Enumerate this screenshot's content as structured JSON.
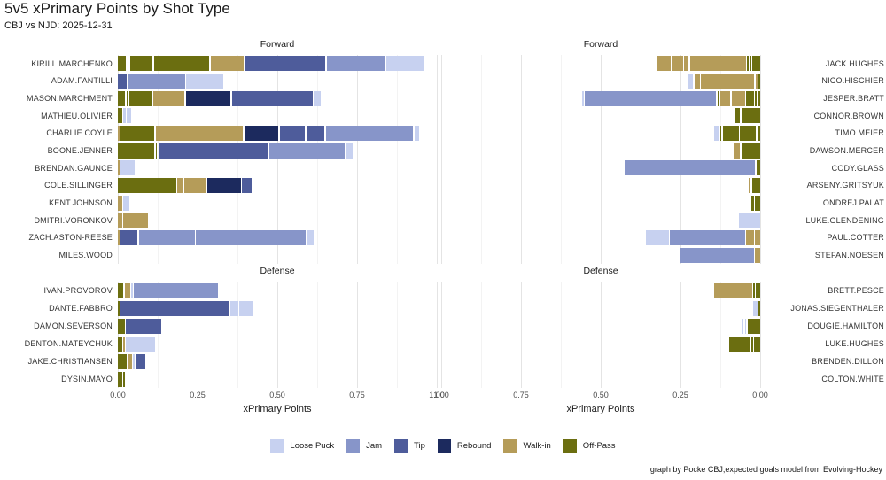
{
  "chart_data": {
    "type": "bar",
    "orientation": "horizontal-stacked",
    "title": "5v5 xPrimary Points by Shot Type",
    "subtitle": "CBJ vs NJD: 2025-12-31",
    "caption": "graph by Pocke CBJ,expected goals model from Evolving-Hockey",
    "xlabel": "xPrimary Points",
    "xlim": [
      0,
      1
    ],
    "x_tick_labels": [
      "0.00",
      "0.25",
      "0.50",
      "0.75",
      "1.00"
    ],
    "grid": "on",
    "legend_position": "bottom",
    "legend": [
      {
        "label": "Loose Puck",
        "color": "#c7d1f0"
      },
      {
        "label": "Jam",
        "color": "#8795c9"
      },
      {
        "label": "Tip",
        "color": "#4e5c9b"
      },
      {
        "label": "Rebound",
        "color": "#1c2a5e"
      },
      {
        "label": "Walk-in",
        "color": "#b59c59"
      },
      {
        "label": "Off-Pass",
        "color": "#6b6e10"
      }
    ],
    "colors": {
      "Loose Puck": "#c7d1f0",
      "Jam": "#8795c9",
      "Tip": "#4e5c9b",
      "Rebound": "#1c2a5e",
      "Walk-in": "#b59c59",
      "Off-Pass": "#6b6e10"
    },
    "panels": [
      {
        "id": "fl",
        "group": "Forward",
        "side": "left",
        "rows": [
          {
            "player": "KIRILL.MARCHENKO",
            "segments": [
              [
                "Off-Pass",
                0.03
              ],
              [
                "Off-Pass",
                0.008
              ],
              [
                "Off-Pass",
                0.075
              ],
              [
                "Off-Pass",
                0.178
              ],
              [
                "Walk-in",
                0.107
              ],
              [
                "Tip",
                0.256
              ],
              [
                "Jam",
                0.187
              ],
              [
                "Loose Puck",
                0.123
              ]
            ]
          },
          {
            "player": "ADAM.FANTILLI",
            "segments": [
              [
                "Tip",
                0.031
              ],
              [
                "Jam",
                0.183
              ],
              [
                "Loose Puck",
                0.12
              ]
            ]
          },
          {
            "player": "MASON.MARCHMENT",
            "segments": [
              [
                "Off-Pass",
                0.027
              ],
              [
                "Off-Pass",
                0.007
              ],
              [
                "Off-Pass",
                0.075
              ],
              [
                "Walk-in",
                0.103
              ],
              [
                "Rebound",
                0.144
              ],
              [
                "Tip",
                0.257
              ],
              [
                "Loose Puck",
                0.026
              ]
            ]
          },
          {
            "player": "MATHIEU.OLIVIER",
            "segments": [
              [
                "Off-Pass",
                0.008
              ],
              [
                "Off-Pass",
                0.008
              ],
              [
                "Loose Puck",
                0.011
              ],
              [
                "Loose Puck",
                0.019
              ]
            ]
          },
          {
            "player": "CHARLIE.COYLE",
            "segments": [
              [
                "Walk-in",
                0.004
              ],
              [
                "Off-Pass",
                0.11
              ],
              [
                "Walk-in",
                0.278
              ],
              [
                "Rebound",
                0.111
              ],
              [
                "Tip",
                0.083
              ],
              [
                "Tip",
                0.062
              ],
              [
                "Jam",
                0.278
              ],
              [
                "Loose Puck",
                0.019
              ]
            ]
          },
          {
            "player": "BOONE.JENNER",
            "segments": [
              [
                "Off-Pass",
                0.119
              ],
              [
                "Off-Pass",
                0.008
              ],
              [
                "Tip",
                0.347
              ],
              [
                "Jam",
                0.241
              ],
              [
                "Loose Puck",
                0.025
              ]
            ]
          },
          {
            "player": "BRENDAN.GAUNCE",
            "segments": [
              [
                "Walk-in",
                0.006
              ],
              [
                "Loose Puck",
                0.048
              ]
            ]
          },
          {
            "player": "COLE.SILLINGER",
            "segments": [
              [
                "Off-Pass",
                0.009
              ],
              [
                "Off-Pass",
                0.178
              ],
              [
                "Walk-in",
                0.021
              ],
              [
                "Walk-in",
                0.074
              ],
              [
                "Rebound",
                0.108
              ],
              [
                "Tip",
                0.033
              ]
            ]
          },
          {
            "player": "KENT.JOHNSON",
            "segments": [
              [
                "Walk-in",
                0.018
              ],
              [
                "Loose Puck",
                0.022
              ]
            ]
          },
          {
            "player": "DMITRI.VORONKOV",
            "segments": [
              [
                "Walk-in",
                0.018
              ],
              [
                "Walk-in",
                0.081
              ]
            ]
          },
          {
            "player": "ZACH.ASTON-REESE",
            "segments": [
              [
                "Walk-in",
                0.007
              ],
              [
                "Tip",
                0.057
              ],
              [
                "Jam",
                0.179
              ],
              [
                "Jam",
                0.348
              ],
              [
                "Loose Puck",
                0.026
              ]
            ]
          },
          {
            "player": "MILES.WOOD",
            "segments": []
          }
        ]
      },
      {
        "id": "fr",
        "group": "Forward",
        "side": "right",
        "rows": [
          {
            "player": "JACK.HUGHES",
            "segments": [
              [
                "Off-Pass",
                0.006
              ],
              [
                "Off-Pass",
                0.02
              ],
              [
                "Off-Pass",
                0.008
              ],
              [
                "Off-Pass",
                0.008
              ],
              [
                "Walk-in",
                0.178
              ],
              [
                "Walk-in",
                0.019
              ],
              [
                "Walk-in",
                0.037
              ],
              [
                "Walk-in",
                0.048
              ]
            ]
          },
          {
            "player": "NICO.HISCHIER",
            "segments": [
              [
                "Off-Pass",
                0.009
              ],
              [
                "Walk-in",
                0.01
              ],
              [
                "Walk-in",
                0.171
              ],
              [
                "Walk-in",
                0.021
              ],
              [
                "Loose Puck",
                0.02
              ]
            ]
          },
          {
            "player": "JESPER.BRATT",
            "segments": [
              [
                "Off-Pass",
                0.011
              ],
              [
                "Off-Pass",
                0.009
              ],
              [
                "Off-Pass",
                0.028
              ],
              [
                "Walk-in",
                0.046
              ],
              [
                "Walk-in",
                0.034
              ],
              [
                "Off-Pass",
                0.011
              ],
              [
                "Jam",
                0.415
              ],
              [
                "Loose Puck",
                0.008
              ]
            ]
          },
          {
            "player": "CONNOR.BROWN",
            "segments": [
              [
                "Off-Pass",
                0.005
              ],
              [
                "Off-Pass",
                0.055
              ],
              [
                "Off-Pass",
                0.019
              ]
            ]
          },
          {
            "player": "TIMO.MEIER",
            "segments": [
              [
                "Off-Pass",
                0.013
              ],
              [
                "Off-Pass",
                0.055
              ],
              [
                "Off-Pass",
                0.016
              ],
              [
                "Off-Pass",
                0.037
              ],
              [
                "Off-Pass",
                0.003
              ],
              [
                "Loose Puck",
                0.02
              ]
            ]
          },
          {
            "player": "DAWSON.MERCER",
            "segments": [
              [
                "Off-Pass",
                0.006
              ],
              [
                "Off-Pass",
                0.055
              ],
              [
                "Walk-in",
                0.02
              ]
            ]
          },
          {
            "player": "CODY.GLASS",
            "segments": [
              [
                "Off-Pass",
                0.016
              ],
              [
                "Jam",
                0.414
              ]
            ]
          },
          {
            "player": "ARSENY.GRITSYUK",
            "segments": [
              [
                "Off-Pass",
                0.008
              ],
              [
                "Off-Pass",
                0.022
              ],
              [
                "Walk-in",
                0.005
              ]
            ]
          },
          {
            "player": "ONDREJ.PALAT",
            "segments": [
              [
                "Off-Pass",
                0.02
              ],
              [
                "Off-Pass",
                0.013
              ]
            ]
          },
          {
            "player": "LUKE.GLENDENING",
            "segments": [
              [
                "Loose Puck",
                0.071
              ]
            ]
          },
          {
            "player": "PAUL.COTTER",
            "segments": [
              [
                "Walk-in",
                0.02
              ],
              [
                "Walk-in",
                0.028
              ],
              [
                "Jam",
                0.239
              ],
              [
                "Loose Puck",
                0.075
              ]
            ]
          },
          {
            "player": "STEFAN.NOESEN",
            "segments": [
              [
                "Walk-in",
                0.02
              ],
              [
                "Jam",
                0.237
              ]
            ]
          }
        ]
      },
      {
        "id": "dl",
        "group": "Defense",
        "side": "left",
        "rows": [
          {
            "player": "IVAN.PROVOROV",
            "segments": [
              [
                "Off-Pass",
                0.022
              ],
              [
                "Walk-in",
                0.02
              ],
              [
                "Loose Puck",
                0.006
              ],
              [
                "Jam",
                0.267
              ]
            ]
          },
          {
            "player": "DANTE.FABBRO",
            "segments": [
              [
                "Off-Pass",
                0.008
              ],
              [
                "Tip",
                0.344
              ],
              [
                "Loose Puck",
                0.028
              ],
              [
                "Loose Puck",
                0.046
              ]
            ]
          },
          {
            "player": "DAMON.SEVERSON",
            "segments": [
              [
                "Off-Pass",
                0.007
              ],
              [
                "Off-Pass",
                0.017
              ],
              [
                "Tip",
                0.084
              ],
              [
                "Tip",
                0.031
              ]
            ]
          },
          {
            "player": "DENTON.MATEYCHUK",
            "segments": [
              [
                "Off-Pass",
                0.017
              ],
              [
                "Walk-in",
                0.004
              ],
              [
                "Loose Puck",
                0.096
              ]
            ]
          },
          {
            "player": "JAKE.CHRISTIANSEN",
            "segments": [
              [
                "Off-Pass",
                0.008
              ],
              [
                "Off-Pass",
                0.024
              ],
              [
                "Walk-in",
                0.015
              ],
              [
                "Loose Puck",
                0.004
              ],
              [
                "Tip",
                0.033
              ]
            ]
          },
          {
            "player": "DYSIN.MAYO",
            "segments": [
              [
                "Off-Pass",
                0.008
              ],
              [
                "Off-Pass",
                0.009
              ],
              [
                "Off-Pass",
                0.009
              ]
            ]
          }
        ]
      },
      {
        "id": "dr",
        "group": "Defense",
        "side": "right",
        "rows": [
          {
            "player": "BRETT.PESCE",
            "segments": [
              [
                "Off-Pass",
                0.009
              ],
              [
                "Off-Pass",
                0.007
              ],
              [
                "Off-Pass",
                0.008
              ],
              [
                "Walk-in",
                0.123
              ]
            ]
          },
          {
            "player": "JONAS.SIEGENTHALER",
            "segments": [
              [
                "Off-Pass",
                0.005
              ],
              [
                "Loose Puck",
                0.018
              ]
            ]
          },
          {
            "player": "DOUGIE.HAMILTON",
            "segments": [
              [
                "Off-Pass",
                0.006
              ],
              [
                "Off-Pass",
                0.026
              ],
              [
                "Off-Pass",
                0.008
              ],
              [
                "Loose Puck",
                0.008
              ],
              [
                "Loose Puck",
                0.007
              ]
            ]
          },
          {
            "player": "LUKE.HUGHES",
            "segments": [
              [
                "Off-Pass",
                0.003
              ],
              [
                "Off-Pass",
                0.015
              ],
              [
                "Off-Pass",
                0.006
              ],
              [
                "Off-Pass",
                0.068
              ]
            ]
          },
          {
            "player": "BRENDEN.DILLON",
            "segments": []
          },
          {
            "player": "COLTON.WHITE",
            "segments": []
          }
        ]
      }
    ]
  }
}
